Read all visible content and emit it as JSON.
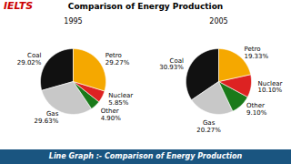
{
  "chart_data": [
    {
      "type": "pie",
      "title": "Comparison of Energy Production",
      "subtitle": "1995",
      "categories": [
        "Coal",
        "Gas",
        "Other",
        "Nuclear",
        "Petro"
      ],
      "values": [
        29.02,
        29.63,
        4.9,
        5.85,
        29.27
      ],
      "value_labels": [
        "29.02%",
        "29.63%",
        "4.90%",
        "5.85%",
        "29.27%"
      ],
      "colors": [
        "#111111",
        "#c8c8c8",
        "#1a7a1a",
        "#dd2222",
        "#f5a800"
      ],
      "data_labels": true,
      "annotations": [
        "IELTS",
        "Line Graph :- Comparison of Energy Production"
      ]
    },
    {
      "type": "pie",
      "subtitle": "2005",
      "categories": [
        "Coal",
        "Gas",
        "Other",
        "Nuclear",
        "Petro"
      ],
      "values": [
        30.93,
        20.27,
        9.1,
        10.1,
        19.33
      ],
      "value_labels": [
        "30.93%",
        "20.27%",
        "9.10%",
        "10.10%",
        "19.33%"
      ],
      "colors": [
        "#111111",
        "#c8c8c8",
        "#1a7a1a",
        "#dd2222",
        "#f5a800"
      ],
      "data_labels": true
    }
  ]
}
